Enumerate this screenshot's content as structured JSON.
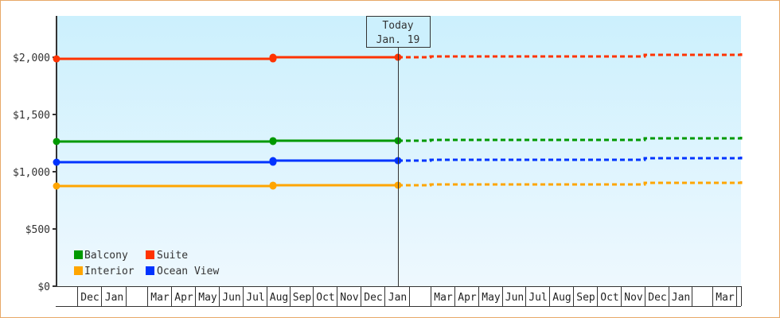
{
  "chart_data": {
    "type": "line",
    "title": "",
    "xlabel": "",
    "ylabel": "",
    "ylim": [
      0,
      2361
    ],
    "y_ticks": [
      {
        "value": 0,
        "label": "$0"
      },
      {
        "value": 500,
        "label": "$500"
      },
      {
        "value": 1000,
        "label": "$1,000"
      },
      {
        "value": 1500,
        "label": "$1,500"
      },
      {
        "value": 2000,
        "label": "$2,000"
      }
    ],
    "x_ticks": [
      "",
      "Dec",
      "Jan",
      "",
      "Mar",
      "Apr",
      "May",
      "Jun",
      "Jul",
      "Aug",
      "Sep",
      "Oct",
      "Nov",
      "Dec",
      "Jan",
      "",
      "Mar",
      "Apr",
      "May",
      "Jun",
      "Jul",
      "Aug",
      "Sep",
      "Oct",
      "Nov",
      "Dec",
      "Jan",
      "",
      "Mar"
    ],
    "x_tick_edges": [
      71,
      97,
      127,
      158,
      185,
      215,
      245,
      275,
      305,
      335,
      364,
      393,
      423,
      453,
      483,
      514,
      541,
      571,
      601,
      631,
      660,
      690,
      720,
      750,
      780,
      810,
      840,
      869,
      895,
      925
    ],
    "today_marker": {
      "line1": "Today",
      "line2": "Jan. 19",
      "x": 500
    },
    "legend": {
      "position": "lower-left",
      "entries": [
        "Balcony",
        "Suite",
        "Interior",
        "Ocean View"
      ]
    },
    "grid": false,
    "series": [
      {
        "name": "Suite",
        "color": "#ff3300",
        "historical": [
          {
            "x": "Nov (start)",
            "value": 1986
          },
          {
            "x": "Aug",
            "value": 1986
          },
          {
            "x": "Aug",
            "value": 2000
          },
          {
            "x": "Jan (today)",
            "value": 2000
          }
        ],
        "projected": [
          {
            "x": "Jan (today)",
            "value": 2000
          },
          {
            "x": "Mar",
            "value": 2007
          },
          {
            "x": "Oct",
            "value": 2021
          },
          {
            "x": "Apr (end)",
            "value": 2035
          }
        ]
      },
      {
        "name": "Balcony",
        "color": "#009900",
        "historical": [
          {
            "x": "Nov (start)",
            "value": 1264
          },
          {
            "x": "Aug",
            "value": 1264
          },
          {
            "x": "Aug",
            "value": 1271
          },
          {
            "x": "Jan (today)",
            "value": 1271
          }
        ],
        "projected": [
          {
            "x": "Jan (today)",
            "value": 1271
          },
          {
            "x": "Mar",
            "value": 1278
          },
          {
            "x": "Oct",
            "value": 1292
          },
          {
            "x": "Apr (end)",
            "value": 1306
          }
        ]
      },
      {
        "name": "Ocean View",
        "color": "#0033ff",
        "historical": [
          {
            "x": "Nov (start)",
            "value": 1083
          },
          {
            "x": "Aug",
            "value": 1083
          },
          {
            "x": "Aug",
            "value": 1097
          },
          {
            "x": "Jan (today)",
            "value": 1097
          }
        ],
        "projected": [
          {
            "x": "Jan (today)",
            "value": 1097
          },
          {
            "x": "Mar",
            "value": 1104
          },
          {
            "x": "Oct",
            "value": 1118
          },
          {
            "x": "Apr (end)",
            "value": 1132
          }
        ]
      },
      {
        "name": "Interior",
        "color": "#ffa500",
        "historical": [
          {
            "x": "Nov (start)",
            "value": 875
          },
          {
            "x": "Aug",
            "value": 875
          },
          {
            "x": "Aug",
            "value": 882
          },
          {
            "x": "Jan (today)",
            "value": 882
          }
        ],
        "projected": [
          {
            "x": "Jan (today)",
            "value": 882
          },
          {
            "x": "Mar",
            "value": 889
          },
          {
            "x": "Oct",
            "value": 903
          },
          {
            "x": "Apr (end)",
            "value": 917
          }
        ]
      }
    ]
  },
  "legend": {
    "items": [
      {
        "label": "Balcony",
        "color": "#009900"
      },
      {
        "label": "Suite",
        "color": "#ff3300"
      },
      {
        "label": "Interior",
        "color": "#ffa500"
      },
      {
        "label": "Ocean View",
        "color": "#0033ff"
      }
    ]
  },
  "tooltip": {
    "line1": "Today",
    "line2": "Jan. 19"
  },
  "y_axis": {
    "labels": [
      "$2,000",
      "$1,500",
      "$1,000",
      "$500",
      "$0"
    ]
  },
  "x_axis": {
    "labels": [
      "",
      "Dec",
      "Jan",
      "",
      "Mar",
      "Apr",
      "May",
      "Jun",
      "Jul",
      "Aug",
      "Sep",
      "Oct",
      "Nov",
      "Dec",
      "Jan",
      "",
      "Mar",
      "Apr",
      "May",
      "Jun",
      "Jul",
      "Aug",
      "Sep",
      "Oct",
      "Nov",
      "Dec",
      "Jan",
      "",
      "Mar"
    ]
  }
}
